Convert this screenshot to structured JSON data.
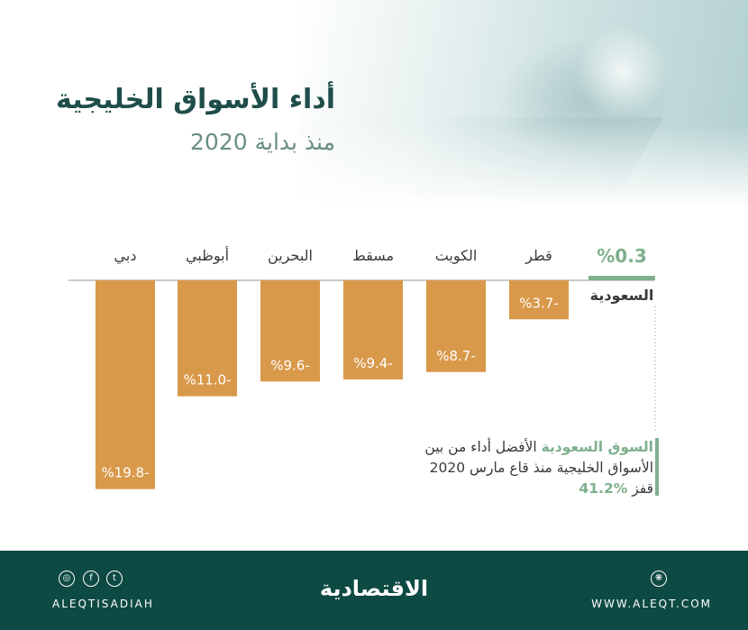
{
  "header": {
    "title": "أداء الأسواق الخليجية",
    "subtitle": "منذ بداية 2020"
  },
  "chart_data": {
    "type": "bar",
    "categories": [
      "السعودية",
      "قطر",
      "الكويت",
      "مسقط",
      "البحرين",
      "أبوظبي",
      "دبي"
    ],
    "values": [
      0.3,
      -3.7,
      -8.7,
      -9.4,
      -9.6,
      -11.0,
      -19.8
    ],
    "labels": [
      "%0.3",
      "%3.7-",
      "%8.7-",
      "%9.4-",
      "%9.6-",
      "%11.0-",
      "%19.8-"
    ],
    "title": "أداء الأسواق الخليجية",
    "subtitle": "منذ بداية 2020",
    "ylim": [
      -20,
      1
    ],
    "grid": false,
    "colors": {
      "negative": "#d9994a",
      "positive": "#7fb08e",
      "axis": "#b8b8b8"
    }
  },
  "note": {
    "highlight": "السوق السعودية",
    "line1_rest": " الأفضل أداء من بين",
    "line2": "الأسواق الخليجية منذ قاع مارس 2020",
    "line3_prefix": "قفز ",
    "percent": "%41.2"
  },
  "footer": {
    "logo": "الاقتصادية",
    "handle": "ALEQTISADIAH",
    "website": "WWW.ALEQT.COM",
    "icons": [
      "instagram-icon",
      "facebook-icon",
      "twitter-icon",
      "web-icon"
    ]
  }
}
